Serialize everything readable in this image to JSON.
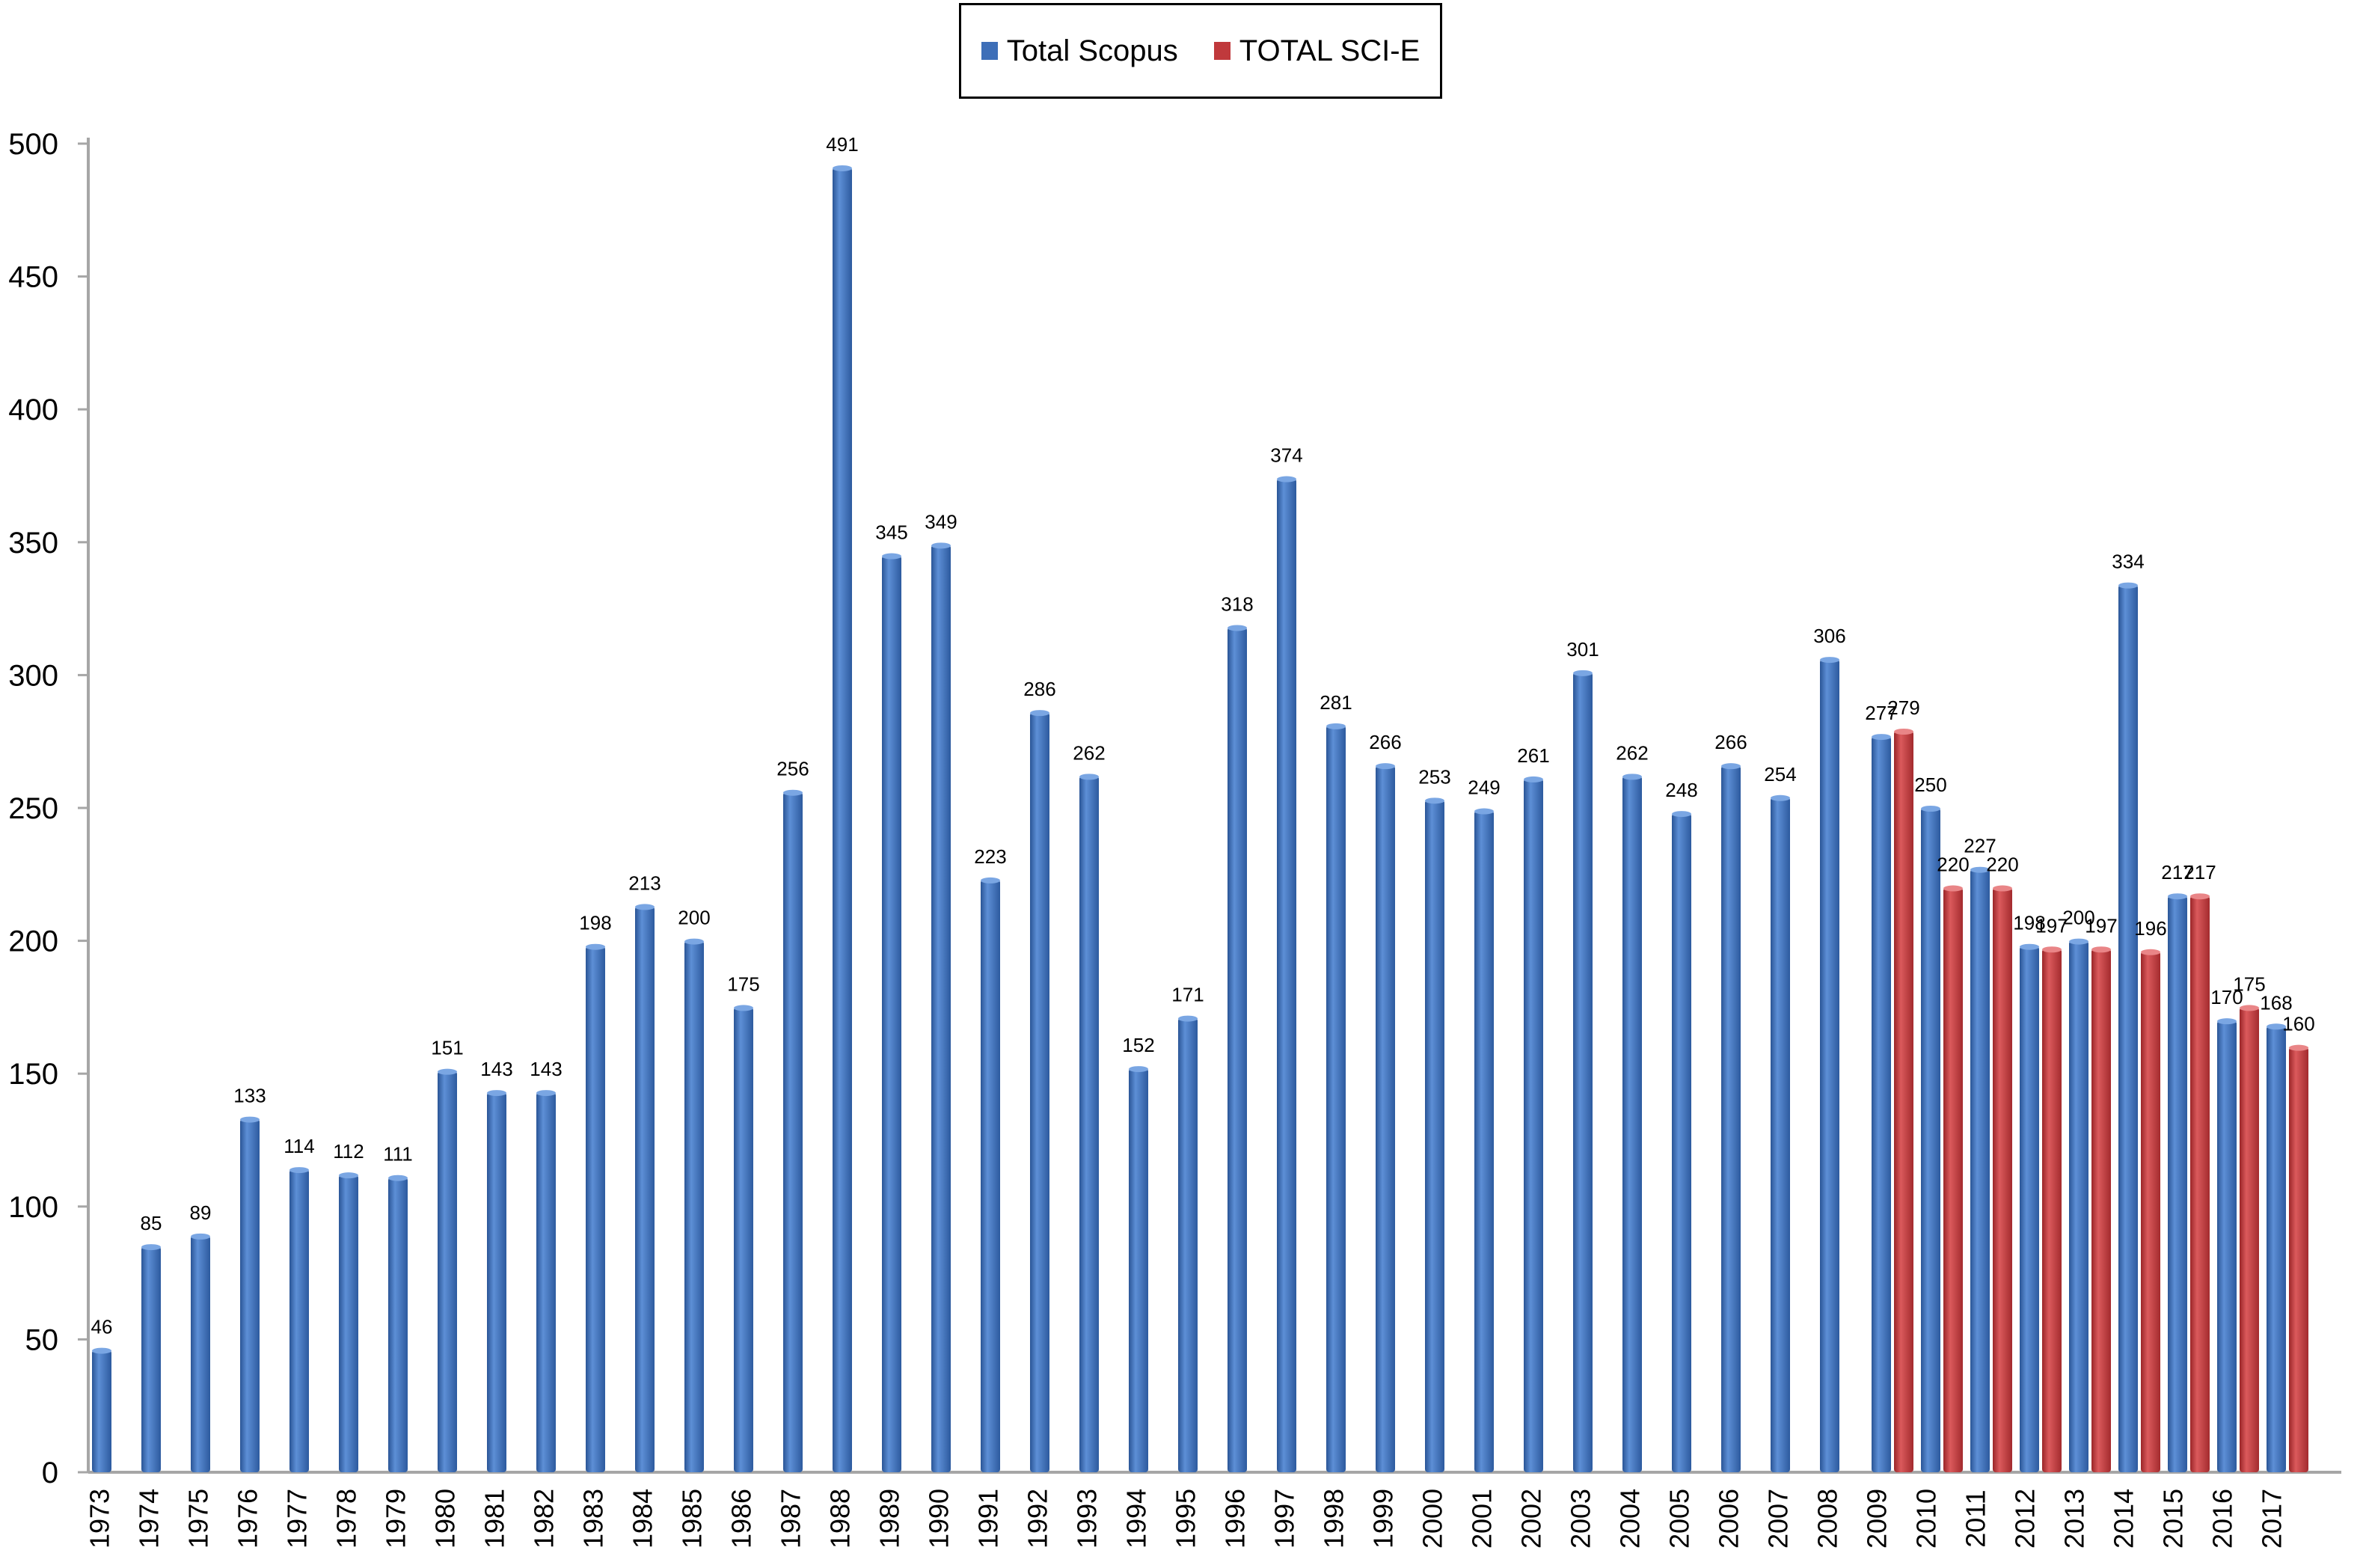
{
  "chart_data": {
    "type": "bar",
    "title": "",
    "xlabel": "",
    "ylabel": "",
    "ylim": [
      0,
      500
    ],
    "yticks": [
      0,
      50,
      100,
      150,
      200,
      250,
      300,
      350,
      400,
      450,
      500
    ],
    "grid": false,
    "legend": "top-center",
    "categories": [
      "1973",
      "1974",
      "1975",
      "1976",
      "1977",
      "1978",
      "1979",
      "1980",
      "1981",
      "1982",
      "1983",
      "1984",
      "1985",
      "1986",
      "1987",
      "1988",
      "1989",
      "1990",
      "1991",
      "1992",
      "1993",
      "1994",
      "1995",
      "1996",
      "1997",
      "1998",
      "1999",
      "2000",
      "2001",
      "2002",
      "2003",
      "2004",
      "2005",
      "2006",
      "2007",
      "2008",
      "2009",
      "2010",
      "2011",
      "2012",
      "2013",
      "2014",
      "2015",
      "2016",
      "2017"
    ],
    "series": [
      {
        "name": "Total Scopus",
        "color": "#3e6fb8",
        "values": [
          46,
          85,
          89,
          133,
          114,
          112,
          111,
          151,
          143,
          143,
          198,
          213,
          200,
          175,
          256,
          491,
          345,
          349,
          223,
          286,
          262,
          152,
          171,
          318,
          374,
          281,
          266,
          253,
          249,
          261,
          301,
          262,
          248,
          266,
          254,
          306,
          277,
          250,
          227,
          198,
          200,
          334,
          217,
          170,
          168
        ]
      },
      {
        "name": "TOTAL SCI-E",
        "color": "#c0393c",
        "values": [
          null,
          null,
          null,
          null,
          null,
          null,
          null,
          null,
          null,
          null,
          null,
          null,
          null,
          null,
          null,
          null,
          null,
          null,
          null,
          null,
          null,
          null,
          null,
          null,
          null,
          null,
          null,
          null,
          null,
          null,
          null,
          null,
          null,
          null,
          null,
          null,
          279,
          220,
          220,
          197,
          197,
          196,
          217,
          175,
          160
        ]
      }
    ]
  }
}
